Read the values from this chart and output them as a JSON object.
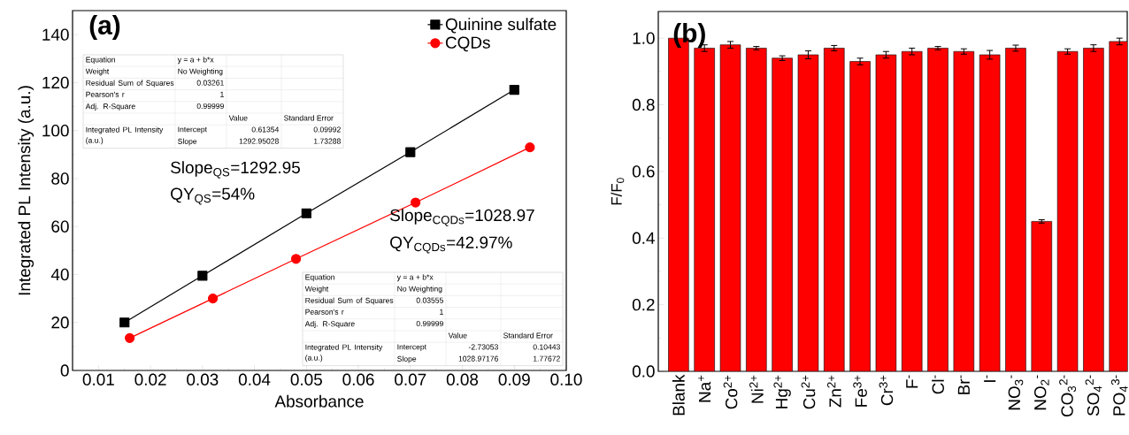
{
  "chart_data": [
    {
      "type": "line",
      "xlabel": "Absorbance",
      "ylabel": "Integrated PL Intensity (a.u.)",
      "xlim": [
        0.005,
        0.1
      ],
      "ylim": [
        0,
        150
      ],
      "xticks": [
        0.01,
        0.02,
        0.03,
        0.04,
        0.05,
        0.06,
        0.07,
        0.08,
        0.09,
        {
          "value": 0.1,
          "label": "0.10"
        }
      ],
      "yticks": [
        0,
        20,
        40,
        60,
        80,
        100,
        120,
        140
      ],
      "legend": "top right",
      "series": [
        {
          "name": "Quinine sulfate",
          "color": "#000000",
          "marker": "square",
          "x": [
            0.015,
            0.03,
            0.05,
            0.07,
            0.09
          ],
          "values": [
            20,
            39.5,
            65.5,
            91,
            117
          ]
        },
        {
          "name": "CQDs",
          "color": "#ff0000",
          "marker": "circle",
          "x": [
            0.016,
            0.032,
            0.048,
            0.071,
            0.093
          ],
          "values": [
            13.5,
            30,
            46.5,
            70,
            93
          ]
        }
      ],
      "annotations": [
        "**(a)**",
        "Slope$_{QS}$=1292.95",
        "QY$_{QS}$=54%",
        "Slope$_{CQDs}$=1028.97",
        "QY$_{CQDs}$=42.97%",
        "Equation",
        "y = a + b*x",
        "Weight",
        "No Weighting",
        "Residual Sum of Squares",
        "0.03261",
        "Pearson's r",
        "1",
        "Adj. R-Square",
        "0.99999",
        "Value",
        "Standard Error",
        "Integrated PL Intensity (a.u.)",
        "Intercept",
        "0.61354",
        "0.09992",
        "Slope",
        "1292.95028",
        "1.73288",
        "Equation",
        "y = a + b*x",
        "Weight",
        "No Weighting",
        "Residual Sum of Squares",
        "0.03555",
        "Pearson's r",
        "1",
        "Adj. R-Square",
        "0.99999",
        "Value",
        "Standard Error",
        "Integrated PL Intensity (a.u.)",
        "Intercept",
        "-2.73053",
        "0.10443",
        "Slope",
        "1028.97176",
        "1.77672"
      ]
    },
    {
      "type": "bar",
      "ylabel": "F/F$_{0}$",
      "color": "#ff0000",
      "ylim": [
        0,
        1.08
      ],
      "yticks": [
        {
          "value": 0,
          "label": "0.0"
        },
        0.2,
        0.4,
        0.6,
        0.8,
        {
          "value": 1,
          "label": "1.0"
        }
      ],
      "categories": [
        "Blank",
        "Na$^{+}$",
        "Co$^{2+}$",
        "Ni$^{2+}$",
        "Hg$^{2+}$",
        "Cu$^{2+}$",
        "Zn$^{2+}$",
        "Fe$^{3+}$",
        "Cr$^{3+}$",
        "F$^{-}$",
        "Cl$^{-}$",
        "Br$^{-}$",
        "I$^{-}$",
        "NO$_{3}$$^{-}$",
        "NO$_{2}$$^{-}$",
        "CO$_{3}$$^{2-}$",
        "SO$_{4}$$^{2-}$",
        "PO$_{4}$$^{3-}$"
      ],
      "values": [
        1.0,
        0.97,
        0.98,
        0.97,
        0.94,
        0.95,
        0.97,
        0.93,
        0.95,
        0.96,
        0.97,
        0.96,
        0.95,
        0.97,
        0.45,
        0.96,
        0.97,
        0.99
      ],
      "errors": [
        null,
        0.01,
        0.01,
        0.005,
        0.007,
        0.012,
        0.008,
        0.01,
        0.01,
        0.01,
        0.005,
        0.008,
        0.013,
        0.009,
        0.005,
        0.008,
        0.01,
        0.01
      ],
      "annotations": [
        "**(b)**"
      ]
    }
  ]
}
